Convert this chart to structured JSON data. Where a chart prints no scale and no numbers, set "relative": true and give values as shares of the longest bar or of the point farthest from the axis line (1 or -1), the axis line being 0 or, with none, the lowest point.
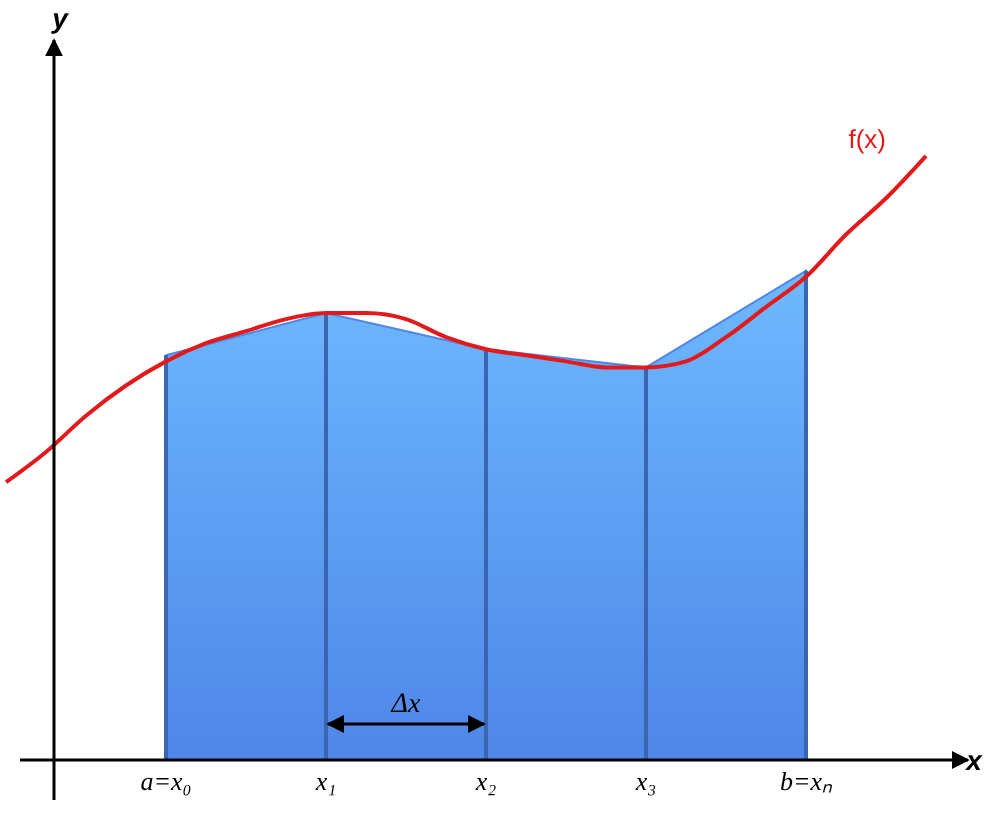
{
  "chart_data": {
    "type": "area",
    "xlabel": "x",
    "ylabel": "y",
    "relative": true,
    "legend": false,
    "categories": [
      null,
      null,
      null,
      null,
      "a=x₀",
      null,
      null,
      null,
      "x₁",
      null,
      null,
      null,
      "x₂",
      null,
      null,
      null,
      "x₃",
      null,
      null,
      null,
      "b=xₙ",
      null,
      null,
      null
    ],
    "annotations": [
      "Δx"
    ],
    "series": [
      {
        "color": "#4f86e8",
        "values": [
          null,
          null,
          null,
          null,
          0.67,
          null,
          null,
          null,
          0.74,
          null,
          null,
          null,
          0.68,
          null,
          null,
          null,
          0.65,
          null,
          null,
          null,
          0.81,
          null,
          null,
          null
        ]
      },
      {
        "type": "line",
        "name": "f(x)",
        "color": "#e31a1c",
        "values": [
          0.46,
          0.51,
          0.57,
          0.62,
          0.66,
          0.69,
          0.71,
          0.73,
          0.74,
          0.74,
          0.73,
          0.7,
          0.68,
          0.67,
          0.66,
          0.65,
          0.65,
          0.66,
          0.7,
          0.75,
          0.8,
          0.87,
          0.93,
          1
        ]
      }
    ]
  }
}
